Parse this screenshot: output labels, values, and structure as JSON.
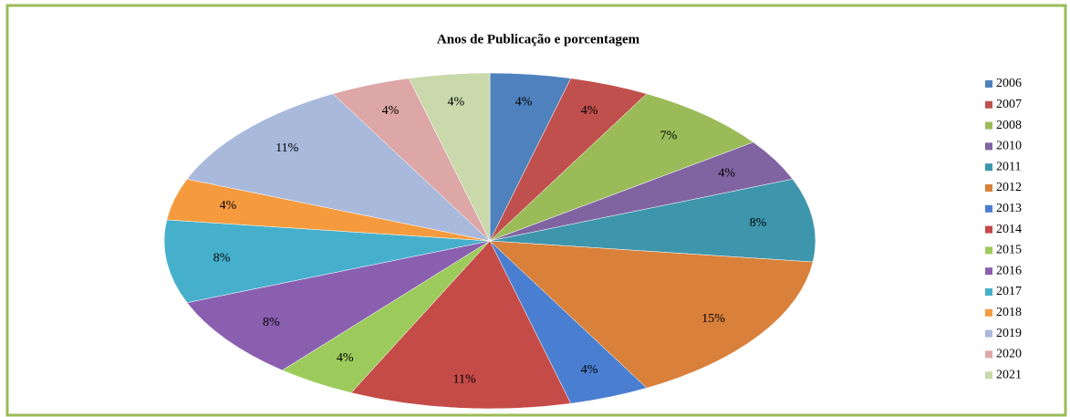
{
  "chart_data": {
    "type": "pie",
    "title": "Anos de Publicação e porcentagem",
    "categories": [
      "2006",
      "2007",
      "2008",
      "2010",
      "2011",
      "2012",
      "2013",
      "2014",
      "2015",
      "2016",
      "2017",
      "2018",
      "2019",
      "2020",
      "2021"
    ],
    "values": [
      4,
      4,
      7,
      4,
      8,
      15,
      4,
      11,
      4,
      8,
      8,
      4,
      11,
      4,
      4
    ],
    "value_labels": [
      "4%",
      "4%",
      "7%",
      "4%",
      "8%",
      "15%",
      "4%",
      "11%",
      "4%",
      "8%",
      "8%",
      "4%",
      "11%",
      "4%",
      "4%"
    ],
    "colors": [
      "#4f81bd",
      "#c0504d",
      "#9bbb59",
      "#8064a2",
      "#3e96ad",
      "#d9803a",
      "#4a7ed0",
      "#c44b48",
      "#9ccb5c",
      "#8a5fb0",
      "#46b0cc",
      "#f59b3e",
      "#a8b9dc",
      "#dca7a6",
      "#c9d9ab"
    ],
    "legend": "right"
  }
}
